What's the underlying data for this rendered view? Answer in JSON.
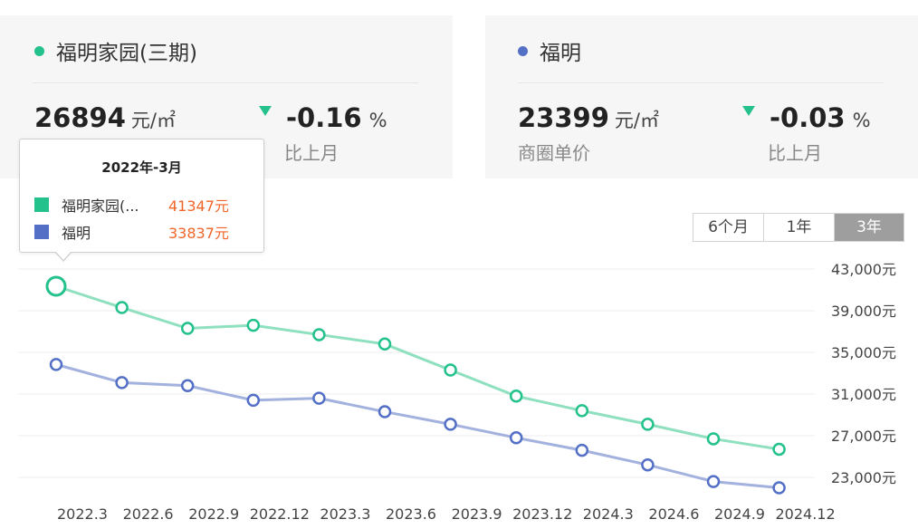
{
  "cards": [
    {
      "name": "福明家园(三期)",
      "color": "#23c18c",
      "price": "26894",
      "price_unit": "元/㎡",
      "change": "-0.16",
      "change_unit": "%",
      "change_label": "比上月"
    },
    {
      "name": "福明",
      "color": "#5470c6",
      "price": "23399",
      "price_unit": "元/㎡",
      "price_label": "商圈单价",
      "change": "-0.03",
      "change_unit": "%",
      "change_label": "比上月"
    }
  ],
  "range_tabs": {
    "items": [
      "6个月",
      "1年",
      "3年"
    ],
    "active": "3年"
  },
  "tooltip": {
    "title": "2022年-3月",
    "rows": [
      {
        "name": "福明家园(...",
        "value": "41347元",
        "color": "#23c18c"
      },
      {
        "name": "福明",
        "value": "33837元",
        "color": "#5470c6"
      }
    ]
  },
  "chart_data": {
    "type": "line",
    "title": "",
    "xlabel": "",
    "ylabel": "",
    "x_tick_labels": [
      "2022.3",
      "2022.6",
      "2022.9",
      "2022.12",
      "2023.3",
      "2023.6",
      "2023.9",
      "2023.12",
      "2024.3",
      "2024.6",
      "2024.9",
      "2024.12"
    ],
    "y_tick_labels": [
      "43,000元",
      "39,000元",
      "35,000元",
      "31,000元",
      "27,000元",
      "23,000元"
    ],
    "y_ticks": [
      43000,
      39000,
      35000,
      31000,
      27000,
      23000
    ],
    "ylim": [
      23000,
      43000
    ],
    "grid": true,
    "y_axis_position": "right",
    "series": [
      {
        "name": "福明家园(三期)",
        "color": "#23c18c",
        "values": [
          41347,
          39300,
          37300,
          37600,
          36700,
          35800,
          33300,
          30800,
          29400,
          28100,
          26700,
          25700
        ]
      },
      {
        "name": "福明",
        "color": "#5470c6",
        "values": [
          33837,
          32100,
          31800,
          30400,
          30600,
          29300,
          28100,
          26800,
          25600,
          24200,
          22600,
          22000
        ]
      }
    ],
    "highlighted_index": 0
  }
}
